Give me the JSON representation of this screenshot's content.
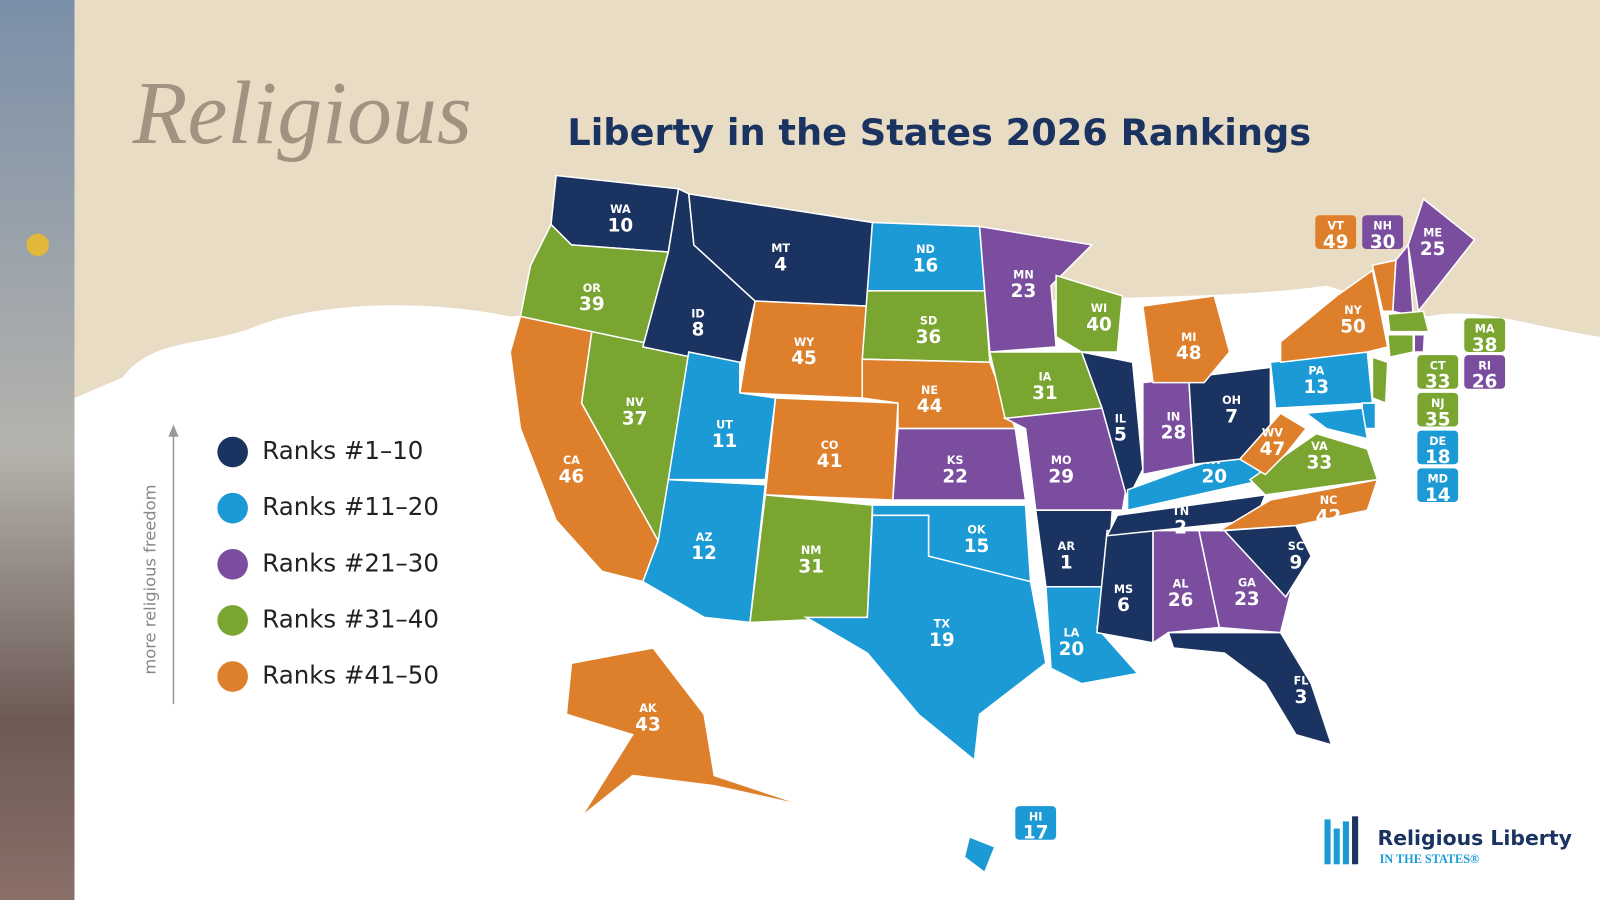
{
  "header": {
    "script_word": "Religious",
    "title": "Liberty in the States 2026 Rankings"
  },
  "legend": {
    "axis_label": "more religious freedom",
    "items": [
      {
        "label": "Ranks #1–10",
        "color": "#1b3360"
      },
      {
        "label": "Ranks #11–20",
        "color": "#1b9ad6"
      },
      {
        "label": "Ranks #21–30",
        "color": "#7a4d9e"
      },
      {
        "label": "Ranks #31–40",
        "color": "#7aa531"
      },
      {
        "label": "Ranks #41–50",
        "color": "#dd7f2b"
      }
    ]
  },
  "states": [
    {
      "abbr": "WA",
      "rank": 10
    },
    {
      "abbr": "OR",
      "rank": 39
    },
    {
      "abbr": "CA",
      "rank": 46
    },
    {
      "abbr": "NV",
      "rank": 37
    },
    {
      "abbr": "ID",
      "rank": 8
    },
    {
      "abbr": "MT",
      "rank": 4
    },
    {
      "abbr": "WY",
      "rank": 45
    },
    {
      "abbr": "UT",
      "rank": 11
    },
    {
      "abbr": "CO",
      "rank": 41
    },
    {
      "abbr": "AZ",
      "rank": 12
    },
    {
      "abbr": "NM",
      "rank": 31
    },
    {
      "abbr": "ND",
      "rank": 16
    },
    {
      "abbr": "SD",
      "rank": 36
    },
    {
      "abbr": "NE",
      "rank": 44
    },
    {
      "abbr": "KS",
      "rank": 22
    },
    {
      "abbr": "OK",
      "rank": 15
    },
    {
      "abbr": "TX",
      "rank": 19
    },
    {
      "abbr": "MN",
      "rank": 23
    },
    {
      "abbr": "IA",
      "rank": 31
    },
    {
      "abbr": "MO",
      "rank": 29
    },
    {
      "abbr": "AR",
      "rank": 1
    },
    {
      "abbr": "LA",
      "rank": 20
    },
    {
      "abbr": "WI",
      "rank": 40
    },
    {
      "abbr": "IL",
      "rank": 5
    },
    {
      "abbr": "MS",
      "rank": 6
    },
    {
      "abbr": "AL",
      "rank": 26
    },
    {
      "abbr": "TN",
      "rank": 2
    },
    {
      "abbr": "KY",
      "rank": 20
    },
    {
      "abbr": "IN",
      "rank": 28
    },
    {
      "abbr": "OH",
      "rank": 7
    },
    {
      "abbr": "MI",
      "rank": 48
    },
    {
      "abbr": "GA",
      "rank": 23
    },
    {
      "abbr": "FL",
      "rank": 3
    },
    {
      "abbr": "SC",
      "rank": 9
    },
    {
      "abbr": "NC",
      "rank": 42
    },
    {
      "abbr": "VA",
      "rank": 33
    },
    {
      "abbr": "WV",
      "rank": 47
    },
    {
      "abbr": "PA",
      "rank": 13
    },
    {
      "abbr": "NY",
      "rank": 50
    },
    {
      "abbr": "VT",
      "rank": 49
    },
    {
      "abbr": "NH",
      "rank": 30
    },
    {
      "abbr": "ME",
      "rank": 25
    },
    {
      "abbr": "MA",
      "rank": 38
    },
    {
      "abbr": "CT",
      "rank": 33
    },
    {
      "abbr": "RI",
      "rank": 26
    },
    {
      "abbr": "NJ",
      "rank": 35
    },
    {
      "abbr": "DE",
      "rank": 18
    },
    {
      "abbr": "MD",
      "rank": 14
    },
    {
      "abbr": "AK",
      "rank": 43
    },
    {
      "abbr": "HI",
      "rank": 17
    }
  ],
  "logo": {
    "name": "Religious Liberty",
    "tagline": "IN THE STATES®"
  }
}
